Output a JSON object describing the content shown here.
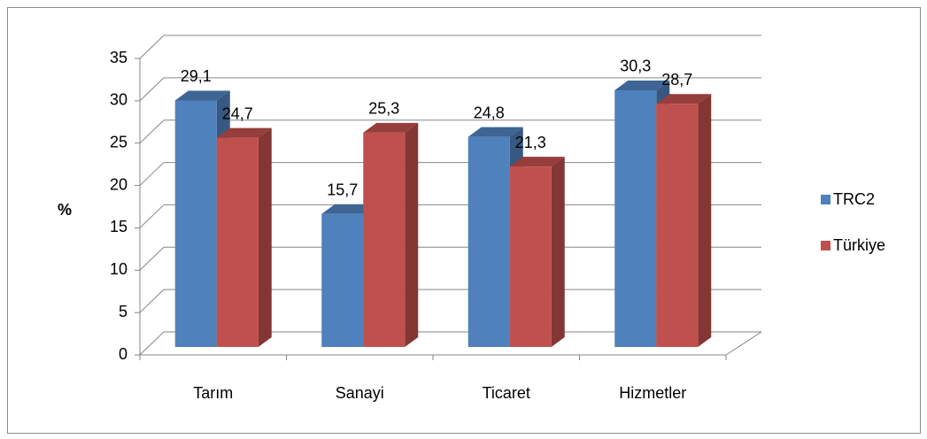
{
  "chart_data": {
    "type": "bar3d",
    "ylabel": "%",
    "categories": [
      "Tarım",
      "Sanayi",
      "Ticaret",
      "Hizmetler"
    ],
    "series": [
      {
        "name": "TRC2",
        "color": "#4f81bd",
        "values": [
          29.1,
          15.7,
          24.8,
          30.3
        ],
        "value_labels": [
          "29,1",
          "15,7",
          "24,8",
          "30,3"
        ]
      },
      {
        "name": "Türkiye",
        "color": "#c0504d",
        "values": [
          24.7,
          25.3,
          21.3,
          28.7
        ],
        "value_labels": [
          "24,7",
          "25,3",
          "21,3",
          "28,7"
        ]
      }
    ],
    "ylim": [
      0,
      35
    ],
    "yticks": [
      0,
      5,
      10,
      15,
      20,
      25,
      30,
      35
    ],
    "grid": true,
    "legend": "right"
  }
}
